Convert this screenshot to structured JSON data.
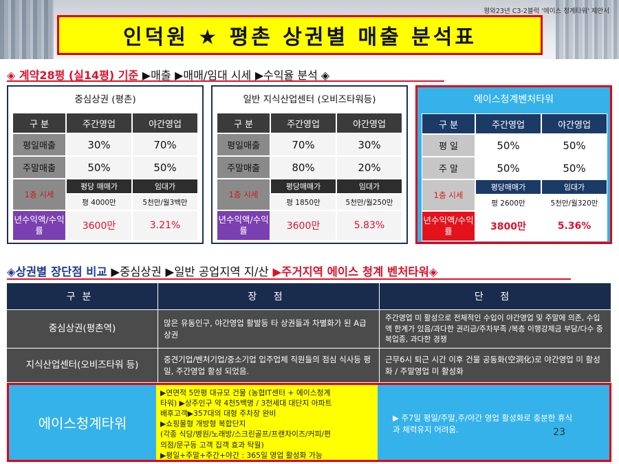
{
  "header": {
    "subtitle": "평와23년 C3-2블럭 '에이스 청계타워' 제안서",
    "title": "인덕원  ★  평촌 상권별  매출 분석표"
  },
  "section1": {
    "lead": "◈ 계약28평 (실14평) 기준",
    "arrow1": "▶매출",
    "arrow2": "▶매매/임대 시세",
    "arrow3": "▶수익율 분석 ◈"
  },
  "panels": [
    {
      "title": "중심상권 (평촌)",
      "headers": [
        "구  분",
        "주간영업",
        "야간영업"
      ],
      "rows": [
        {
          "label": "평일매출",
          "day": "30%",
          "night": "70%"
        },
        {
          "label": "주말매출",
          "day": "50%",
          "night": "50%"
        }
      ],
      "rent_label": "1층 시세",
      "sub_headers": [
        "평당 매매가",
        "임대가"
      ],
      "sub_values": [
        "평 4000만",
        "5천만/월3백만"
      ],
      "yield_label": "년수익액/수익률",
      "yield_values": [
        "3600만",
        "3.21%"
      ]
    },
    {
      "title": "일반 지식산업센터 (오비즈타워등)",
      "headers": [
        "구  분",
        "주간영업",
        "야간영업"
      ],
      "rows": [
        {
          "label": "평일매출",
          "day": "70%",
          "night": "30%"
        },
        {
          "label": "주말매출",
          "day": "80%",
          "night": "20%"
        }
      ],
      "rent_label": "1층 시세",
      "sub_headers": [
        "평당매매가",
        "임대가"
      ],
      "sub_values": [
        "평 1850만",
        "5천만/월250만"
      ],
      "yield_label": "년수익액/수익률",
      "yield_values": [
        "3600만",
        "5.83%"
      ]
    },
    {
      "title": "에이스청계벤처타워",
      "headers": [
        "구  분",
        "주간영업",
        "야간영업"
      ],
      "rows": [
        {
          "label": "평  일",
          "day": "50%",
          "night": "50%"
        },
        {
          "label": "주  말",
          "day": "50%",
          "night": "50%"
        }
      ],
      "rent_label": "1층 시세",
      "sub_headers": [
        "평당매매가",
        "임대가"
      ],
      "sub_values": [
        "평 2600만",
        "5천만/월320만"
      ],
      "yield_label": "년수익액/수익률",
      "yield_values": [
        "3800만",
        "5.36%"
      ]
    }
  ],
  "section2": {
    "lead": "◈상권별 장단점 비교",
    "arrow1": "▶중심상권",
    "arrow2": "▶일반 공업지역 지/산",
    "arrow3": "▶주거지역 에이스 청계 벤처타워◈"
  },
  "comparison": {
    "headers": [
      "구분",
      "장  점",
      "단  점"
    ],
    "rows": [
      {
        "name": "중심상권(평촌역)",
        "pros": "많은 유동인구, 야간영업 활발등 타 상권들과 차별화가 된 A급 상권",
        "cons": "주간영업 미 활성으로 전체적인 수입이 야간영업 및 주말에 의존, 수입액 한계가 있음/과다한 권리금/주차부족 /복층 이행강제금 부담/다수 중복업종, 과다한 경쟁"
      },
      {
        "name": "지식산업센터(오비즈타워 등)",
        "pros": "중견기업/벤처기업/중소기업 입주업체 직원들의 점심 식사등 평일, 주간영업 활성 되었음.",
        "cons": "근무6시 퇴근 시간 이후 건물 공동화(空洞化)로 야간영업 미 활성화 / 주말영업 미 활성화"
      }
    ],
    "ace": {
      "name": "에이스청계타워",
      "pros": [
        "▶연면적 5만평 대규모 건물 (농협IT센터 + 에이스청계",
        "타워) ▶상주인구 약 4천5백명 / 3천세대 대단지 아파트",
        "배후고객▶357대의 대형 주차장 완비",
        "▶쇼핑몰형 개방형 복합단지",
        "(각종 식당/병원/노래방/스크린골프/프랜차이즈/커피/편",
        "의점/문구등 고객 집객 효과 탁월)",
        "▶평일+주말+주간+야간 : 365일 영업 활성화 가능"
      ],
      "cons": "▶ 주7일 평일/주말,주/야간 영업 활성화로 충분한 휴식과 체력유지 어려움."
    }
  },
  "page_number": "23"
}
